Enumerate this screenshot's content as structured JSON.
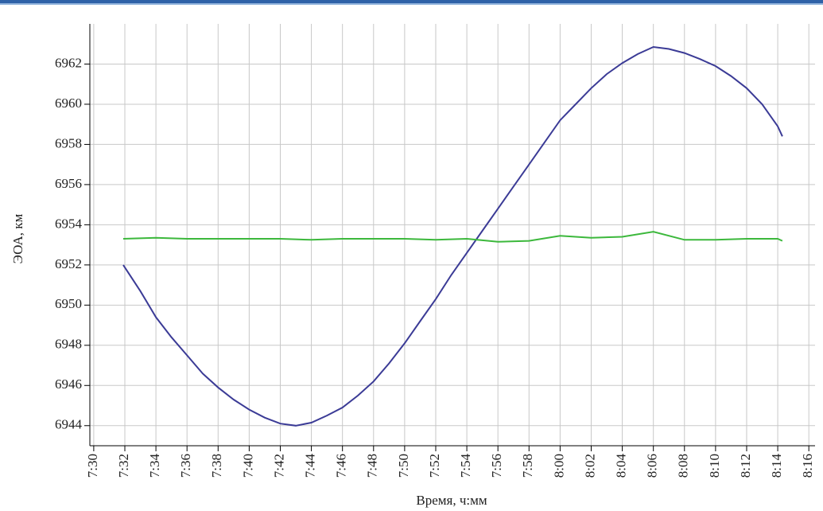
{
  "chart_data": {
    "type": "line",
    "x_label": "Время,  ч:мм",
    "y_label": "ЭОА, км",
    "xlim": [
      449.75,
      496.4
    ],
    "ylim": [
      6943,
      6964
    ],
    "grid": true,
    "xticks": [
      {
        "value": 450,
        "label": "7:30"
      },
      {
        "value": 452,
        "label": "7:32"
      },
      {
        "value": 454,
        "label": "7:34"
      },
      {
        "value": 456,
        "label": "7:36"
      },
      {
        "value": 458,
        "label": "7:38"
      },
      {
        "value": 460,
        "label": "7:40"
      },
      {
        "value": 462,
        "label": "7:42"
      },
      {
        "value": 464,
        "label": "7:44"
      },
      {
        "value": 466,
        "label": "7:46"
      },
      {
        "value": 468,
        "label": "7:48"
      },
      {
        "value": 470,
        "label": "7:50"
      },
      {
        "value": 472,
        "label": "7:52"
      },
      {
        "value": 474,
        "label": "7:54"
      },
      {
        "value": 476,
        "label": "7:56"
      },
      {
        "value": 478,
        "label": "7:58"
      },
      {
        "value": 480,
        "label": "8:00"
      },
      {
        "value": 482,
        "label": "8:02"
      },
      {
        "value": 484,
        "label": "8:04"
      },
      {
        "value": 486,
        "label": "8:06"
      },
      {
        "value": 488,
        "label": "8:08"
      },
      {
        "value": 490,
        "label": "8:10"
      },
      {
        "value": 492,
        "label": "8:12"
      },
      {
        "value": 494,
        "label": "8:14"
      },
      {
        "value": 496,
        "label": "8:16"
      }
    ],
    "yticks": [
      6944,
      6946,
      6948,
      6950,
      6952,
      6954,
      6956,
      6958,
      6960,
      6962
    ],
    "series": [
      {
        "color": "#3b3b96",
        "x": [
          451.9,
          453,
          454,
          455,
          456,
          457,
          458,
          459,
          460,
          461,
          462,
          463,
          464,
          465,
          466,
          467,
          468,
          469,
          470,
          471,
          472,
          473,
          474,
          475,
          476,
          477,
          478,
          479,
          480,
          481,
          482,
          483,
          484,
          485,
          486,
          487,
          488,
          489,
          490,
          491,
          492,
          493,
          494,
          494.3
        ],
        "values": [
          6952.0,
          6950.7,
          6949.4,
          6948.4,
          6947.5,
          6946.6,
          6945.9,
          6945.3,
          6944.8,
          6944.4,
          6944.1,
          6944.0,
          6944.15,
          6944.5,
          6944.9,
          6945.5,
          6946.2,
          6947.1,
          6948.1,
          6949.2,
          6950.3,
          6951.5,
          6952.6,
          6953.7,
          6954.8,
          6955.9,
          6957.0,
          6958.1,
          6959.2,
          6960.0,
          6960.8,
          6961.5,
          6962.05,
          6962.5,
          6962.85,
          6962.75,
          6962.55,
          6962.25,
          6961.9,
          6961.4,
          6960.8,
          6960.0,
          6958.9,
          6958.4
        ]
      },
      {
        "color": "#3cb83c",
        "x": [
          451.9,
          454,
          456,
          458,
          460,
          462,
          464,
          466,
          468,
          470,
          472,
          474,
          476,
          478,
          480,
          482,
          484,
          486,
          488,
          490,
          492,
          494,
          494.3
        ],
        "values": [
          6953.3,
          6953.35,
          6953.3,
          6953.3,
          6953.3,
          6953.3,
          6953.25,
          6953.3,
          6953.3,
          6953.3,
          6953.25,
          6953.3,
          6953.15,
          6953.2,
          6953.45,
          6953.35,
          6953.4,
          6953.65,
          6953.25,
          6953.25,
          6953.3,
          6953.3,
          6953.2
        ]
      }
    ]
  }
}
